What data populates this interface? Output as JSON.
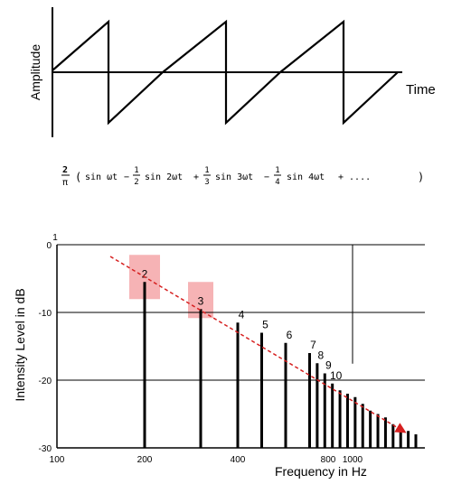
{
  "waveform": {
    "ylabel": "Amplitude",
    "xlabel": "Time"
  },
  "formula": {
    "lead_num": "2",
    "lead_den": "π",
    "open": "(",
    "term1": "sin ωt",
    "op1": "−",
    "frac1_num": "1",
    "frac1_den": "2",
    "term2": "sin 2ωt",
    "op2": "+",
    "frac2_num": "1",
    "frac2_den": "3",
    "term3": "sin 3ωt",
    "op3": "−",
    "frac3_num": "1",
    "frac3_den": "4",
    "term4": "sin 4ωt",
    "tail": "+ ....",
    "close": ")"
  },
  "colors": {
    "line": "#000000",
    "highlight": "#f4a6a8",
    "trend": "#d62020"
  },
  "chart_data": {
    "type": "bar",
    "title": "",
    "xlabel": "Frequency in Hz",
    "ylabel": "Intensity Level in dB",
    "x_scale": "log",
    "xlim": [
      100,
      1500
    ],
    "ylim": [
      -30,
      0
    ],
    "x_ticks": [
      {
        "value": 100,
        "label": "100"
      },
      {
        "value": 200,
        "label": "200"
      },
      {
        "value": 400,
        "label": "400"
      },
      {
        "value": 800,
        "label": "800"
      },
      {
        "value": 1000,
        "label": "1000"
      }
    ],
    "y_ticks": [
      {
        "value": 0,
        "label": "0"
      },
      {
        "value": -10,
        "label": "-10"
      },
      {
        "value": -20,
        "label": "-20"
      },
      {
        "value": -30,
        "label": "-30"
      }
    ],
    "fundamental_hz": 200,
    "fundamental_label": "1",
    "harmonics": [
      {
        "n": 1,
        "freq": 200,
        "db": -5.5,
        "label": "2"
      },
      {
        "n": 2,
        "freq": 300,
        "db": -9.5,
        "label": "3"
      },
      {
        "n": 3,
        "freq": 400,
        "db": -11.5,
        "label": "4"
      },
      {
        "n": 4,
        "freq": 500,
        "db": -13.0,
        "label": "5"
      },
      {
        "n": 5,
        "freq": 600,
        "db": -14.5,
        "label": "6"
      },
      {
        "n": 6,
        "freq": 700,
        "db": -16.0,
        "label": "7"
      },
      {
        "n": 7,
        "freq": 800,
        "db": -17.5,
        "label": "8"
      },
      {
        "n": 8,
        "freq": 900,
        "db": -19.0,
        "label": "9"
      },
      {
        "n": 9,
        "freq": 1000,
        "db": -20.5,
        "label": "10"
      },
      {
        "n": 10,
        "freq": 1100,
        "db": -21.5,
        "label": ""
      },
      {
        "n": 11,
        "freq": 1200,
        "db": -22.0,
        "label": ""
      },
      {
        "n": 12,
        "freq": 1300,
        "db": -22.5,
        "label": ""
      },
      {
        "n": 13,
        "freq": 1400,
        "db": -23.5,
        "label": ""
      },
      {
        "n": 14,
        "freq": 1500,
        "db": -24.5,
        "label": ""
      },
      {
        "n": 15,
        "freq": 1600,
        "db": -25.0,
        "label": ""
      },
      {
        "n": 16,
        "freq": 1700,
        "db": -25.5,
        "label": ""
      },
      {
        "n": 17,
        "freq": 1800,
        "db": -26.5,
        "label": ""
      },
      {
        "n": 18,
        "freq": 1900,
        "db": -27.0,
        "label": ""
      },
      {
        "n": 19,
        "freq": 2000,
        "db": -27.5,
        "label": ""
      },
      {
        "n": 20,
        "freq": 2100,
        "db": -28.0,
        "label": ""
      }
    ],
    "highlighted": [
      1,
      2
    ],
    "trend_line": {
      "from_n": 0.6,
      "to_n": 19
    }
  }
}
